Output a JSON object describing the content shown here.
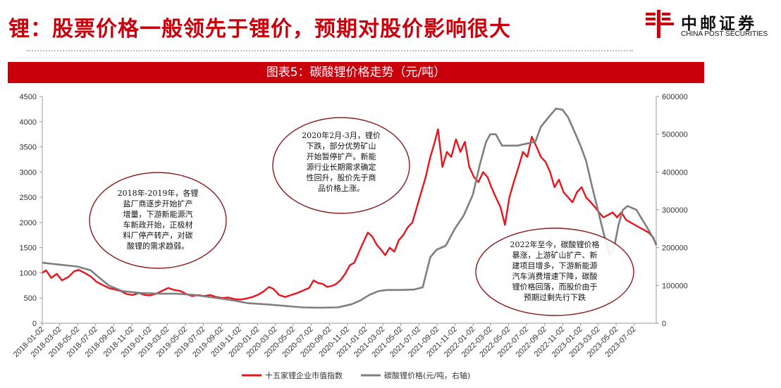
{
  "header": {
    "title": "锂：股票价格一般领先于锂价，预期对股价影响很大",
    "logo_cn": "中邮证券",
    "logo_en": "CHINA POST SECURITIES"
  },
  "colors": {
    "brand_red": "#c9000c",
    "index_line": "#e8141c",
    "price_line": "#7f7f7f",
    "ellipse": "#8b1a1a"
  },
  "chart_data": {
    "type": "line",
    "title": "图表5：碳酸锂价格走势（元/吨）",
    "left_axis": {
      "min": 0,
      "max": 4500,
      "ticks": [
        0,
        500,
        1000,
        1500,
        2000,
        2500,
        3000,
        3500,
        4000,
        4500
      ]
    },
    "right_axis": {
      "min": 0,
      "max": 600000,
      "ticks": [
        0,
        100000,
        200000,
        300000,
        400000,
        500000,
        600000
      ]
    },
    "x_range": [
      "2018-01-02",
      "2023-09-15"
    ],
    "x_tick_labels": [
      "2018-01-02",
      "2018-03-02",
      "2018-05-02",
      "2018-07-02",
      "2018-09-02",
      "2018-11-02",
      "2019-01-02",
      "2019-03-02",
      "2019-05-02",
      "2019-07-02",
      "2019-09-02",
      "2019-11-02",
      "2020-01-02",
      "2020-03-02",
      "2020-05-02",
      "2020-07-02",
      "2020-09-02",
      "2020-11-02",
      "2021-01-02",
      "2021-03-02",
      "2021-05-02",
      "2021-07-02",
      "2021-09-02",
      "2021-11-02",
      "2022-01-02",
      "2022-03-02",
      "2022-05-02",
      "2022-07-02",
      "2022-09-02",
      "2022-11-02",
      "2023-01-02",
      "2023-03-02",
      "2023-05-02",
      "2023-07-02"
    ],
    "series": [
      {
        "name": "十五家锂企业市值指数",
        "axis": "left",
        "points": [
          [
            "2018-01-02",
            1000
          ],
          [
            "2018-01-15",
            1050
          ],
          [
            "2018-02-01",
            900
          ],
          [
            "2018-02-20",
            980
          ],
          [
            "2018-03-10",
            850
          ],
          [
            "2018-04-01",
            920
          ],
          [
            "2018-04-20",
            1030
          ],
          [
            "2018-05-05",
            1060
          ],
          [
            "2018-05-25",
            1000
          ],
          [
            "2018-06-15",
            930
          ],
          [
            "2018-07-05",
            820
          ],
          [
            "2018-07-25",
            760
          ],
          [
            "2018-08-15",
            700
          ],
          [
            "2018-09-05",
            670
          ],
          [
            "2018-09-25",
            640
          ],
          [
            "2018-10-15",
            580
          ],
          [
            "2018-11-05",
            560
          ],
          [
            "2018-11-25",
            600
          ],
          [
            "2018-12-15",
            560
          ],
          [
            "2019-01-02",
            550
          ],
          [
            "2019-01-25",
            590
          ],
          [
            "2019-02-15",
            650
          ],
          [
            "2019-03-05",
            700
          ],
          [
            "2019-03-25",
            660
          ],
          [
            "2019-04-15",
            640
          ],
          [
            "2019-05-05",
            580
          ],
          [
            "2019-05-25",
            540
          ],
          [
            "2019-06-15",
            560
          ],
          [
            "2019-07-05",
            540
          ],
          [
            "2019-07-25",
            560
          ],
          [
            "2019-08-15",
            520
          ],
          [
            "2019-09-05",
            500
          ],
          [
            "2019-09-25",
            510
          ],
          [
            "2019-10-15",
            480
          ],
          [
            "2019-11-05",
            470
          ],
          [
            "2019-11-25",
            490
          ],
          [
            "2019-12-15",
            520
          ],
          [
            "2020-01-02",
            560
          ],
          [
            "2020-01-20",
            620
          ],
          [
            "2020-02-10",
            720
          ],
          [
            "2020-02-25",
            680
          ],
          [
            "2020-03-15",
            560
          ],
          [
            "2020-04-05",
            520
          ],
          [
            "2020-04-25",
            560
          ],
          [
            "2020-05-15",
            600
          ],
          [
            "2020-06-05",
            650
          ],
          [
            "2020-06-25",
            700
          ],
          [
            "2020-07-10",
            850
          ],
          [
            "2020-07-25",
            800
          ],
          [
            "2020-08-10",
            780
          ],
          [
            "2020-08-25",
            720
          ],
          [
            "2020-09-10",
            740
          ],
          [
            "2020-09-25",
            780
          ],
          [
            "2020-10-10",
            860
          ],
          [
            "2020-10-25",
            980
          ],
          [
            "2020-11-10",
            1150
          ],
          [
            "2020-11-25",
            1200
          ],
          [
            "2020-12-10",
            1400
          ],
          [
            "2020-12-25",
            1600
          ],
          [
            "2021-01-10",
            1800
          ],
          [
            "2021-01-25",
            1720
          ],
          [
            "2021-02-10",
            1550
          ],
          [
            "2021-02-25",
            1450
          ],
          [
            "2021-03-10",
            1350
          ],
          [
            "2021-03-25",
            1500
          ],
          [
            "2021-04-10",
            1420
          ],
          [
            "2021-04-25",
            1650
          ],
          [
            "2021-05-10",
            1750
          ],
          [
            "2021-05-25",
            1900
          ],
          [
            "2021-06-10",
            2000
          ],
          [
            "2021-06-25",
            2300
          ],
          [
            "2021-07-10",
            2600
          ],
          [
            "2021-07-25",
            2900
          ],
          [
            "2021-08-10",
            3300
          ],
          [
            "2021-08-25",
            3600
          ],
          [
            "2021-09-05",
            3850
          ],
          [
            "2021-09-20",
            3100
          ],
          [
            "2021-10-05",
            3400
          ],
          [
            "2021-10-20",
            3300
          ],
          [
            "2021-11-05",
            3650
          ],
          [
            "2021-11-20",
            3400
          ],
          [
            "2021-12-05",
            3600
          ],
          [
            "2021-12-20",
            3100
          ],
          [
            "2022-01-05",
            2900
          ],
          [
            "2022-01-20",
            2800
          ],
          [
            "2022-02-05",
            3000
          ],
          [
            "2022-02-20",
            2900
          ],
          [
            "2022-03-05",
            2700
          ],
          [
            "2022-03-20",
            2500
          ],
          [
            "2022-04-05",
            2300
          ],
          [
            "2022-04-20",
            1950
          ],
          [
            "2022-05-05",
            2500
          ],
          [
            "2022-05-20",
            2800
          ],
          [
            "2022-06-05",
            3100
          ],
          [
            "2022-06-20",
            3400
          ],
          [
            "2022-07-05",
            3300
          ],
          [
            "2022-07-20",
            3700
          ],
          [
            "2022-08-05",
            3500
          ],
          [
            "2022-08-20",
            3300
          ],
          [
            "2022-09-05",
            3200
          ],
          [
            "2022-09-20",
            3000
          ],
          [
            "2022-10-05",
            2700
          ],
          [
            "2022-10-20",
            2850
          ],
          [
            "2022-11-05",
            2600
          ],
          [
            "2022-11-20",
            2500
          ],
          [
            "2022-12-05",
            2400
          ],
          [
            "2022-12-20",
            2600
          ],
          [
            "2023-01-05",
            2700
          ],
          [
            "2023-01-20",
            2500
          ],
          [
            "2023-02-05",
            2400
          ],
          [
            "2023-02-20",
            2300
          ],
          [
            "2023-03-05",
            2200
          ],
          [
            "2023-03-20",
            2100
          ],
          [
            "2023-04-05",
            2150
          ],
          [
            "2023-04-20",
            2200
          ],
          [
            "2023-05-05",
            2100
          ],
          [
            "2023-05-20",
            2200
          ],
          [
            "2023-06-05",
            2050
          ],
          [
            "2023-06-20",
            2000
          ],
          [
            "2023-07-05",
            1950
          ],
          [
            "2023-07-20",
            1900
          ],
          [
            "2023-08-05",
            1850
          ],
          [
            "2023-08-20",
            1800
          ],
          [
            "2023-09-05",
            1700
          ],
          [
            "2023-09-15",
            1550
          ]
        ]
      },
      {
        "name": "碳酸锂价格(元/吨，右轴)",
        "axis": "right",
        "points": [
          [
            "2018-01-02",
            160000
          ],
          [
            "2018-03-01",
            155000
          ],
          [
            "2018-05-01",
            150000
          ],
          [
            "2018-06-15",
            140000
          ],
          [
            "2018-07-15",
            120000
          ],
          [
            "2018-08-15",
            100000
          ],
          [
            "2018-10-01",
            85000
          ],
          [
            "2018-12-01",
            80000
          ],
          [
            "2019-02-01",
            78000
          ],
          [
            "2019-04-01",
            78000
          ],
          [
            "2019-06-01",
            75000
          ],
          [
            "2019-07-15",
            70000
          ],
          [
            "2019-09-01",
            65000
          ],
          [
            "2019-10-15",
            60000
          ],
          [
            "2019-12-01",
            53000
          ],
          [
            "2020-02-01",
            50000
          ],
          [
            "2020-04-01",
            46000
          ],
          [
            "2020-06-01",
            42000
          ],
          [
            "2020-08-01",
            41000
          ],
          [
            "2020-10-01",
            42000
          ],
          [
            "2020-11-15",
            50000
          ],
          [
            "2020-12-15",
            60000
          ],
          [
            "2021-01-15",
            75000
          ],
          [
            "2021-02-15",
            85000
          ],
          [
            "2021-03-15",
            88000
          ],
          [
            "2021-05-01",
            88000
          ],
          [
            "2021-06-15",
            89000
          ],
          [
            "2021-07-15",
            95000
          ],
          [
            "2021-08-10",
            175000
          ],
          [
            "2021-09-01",
            195000
          ],
          [
            "2021-10-01",
            205000
          ],
          [
            "2021-11-01",
            250000
          ],
          [
            "2021-12-01",
            285000
          ],
          [
            "2022-01-01",
            340000
          ],
          [
            "2022-01-25",
            420000
          ],
          [
            "2022-02-15",
            480000
          ],
          [
            "2022-03-01",
            500000
          ],
          [
            "2022-03-20",
            500000
          ],
          [
            "2022-04-10",
            470000
          ],
          [
            "2022-05-01",
            470000
          ],
          [
            "2022-06-01",
            470000
          ],
          [
            "2022-07-01",
            475000
          ],
          [
            "2022-08-01",
            480000
          ],
          [
            "2022-08-20",
            520000
          ],
          [
            "2022-09-15",
            545000
          ],
          [
            "2022-10-10",
            568000
          ],
          [
            "2022-11-01",
            565000
          ],
          [
            "2022-11-20",
            545000
          ],
          [
            "2022-12-10",
            510000
          ],
          [
            "2023-01-01",
            470000
          ],
          [
            "2023-01-20",
            430000
          ],
          [
            "2023-02-10",
            360000
          ],
          [
            "2023-03-01",
            300000
          ],
          [
            "2023-03-20",
            240000
          ],
          [
            "2023-04-10",
            180000
          ],
          [
            "2023-04-25",
            200000
          ],
          [
            "2023-05-10",
            260000
          ],
          [
            "2023-05-25",
            300000
          ],
          [
            "2023-06-10",
            310000
          ],
          [
            "2023-06-25",
            305000
          ],
          [
            "2023-07-10",
            300000
          ],
          [
            "2023-07-25",
            280000
          ],
          [
            "2023-08-10",
            260000
          ],
          [
            "2023-08-25",
            240000
          ],
          [
            "2023-09-15",
            210000
          ]
        ]
      }
    ],
    "annotations": [
      {
        "name": "annotation-2018-2019",
        "lines": [
          "2018年-2019年，各锂",
          "盐厂商逐步开始扩产",
          "增量，下游新能源汽",
          "车新政开始，正极材",
          "料厂停产转产，对碳",
          "酸锂的需求趋弱。"
        ]
      },
      {
        "name": "annotation-2020",
        "lines": [
          "2020年2月-3月，锂价",
          "下跌，部分优势矿山",
          "开始暂停扩产。新能",
          "源行业长期需求确定",
          "性回升，股价先于商",
          "品价格上涨。"
        ]
      },
      {
        "name": "annotation-2022",
        "lines": [
          "2022年至今，碳酸锂价格",
          "暴涨，上游矿山扩产、新",
          "建项目增多，下游新能源",
          "汽车消费增速下降，碳酸",
          "锂价格回落，而股价由于",
          "预期过剩先行下跌"
        ]
      }
    ],
    "legend": [
      "十五家锂企业市值指数",
      "碳酸锂价格(元/吨，右轴)"
    ]
  }
}
